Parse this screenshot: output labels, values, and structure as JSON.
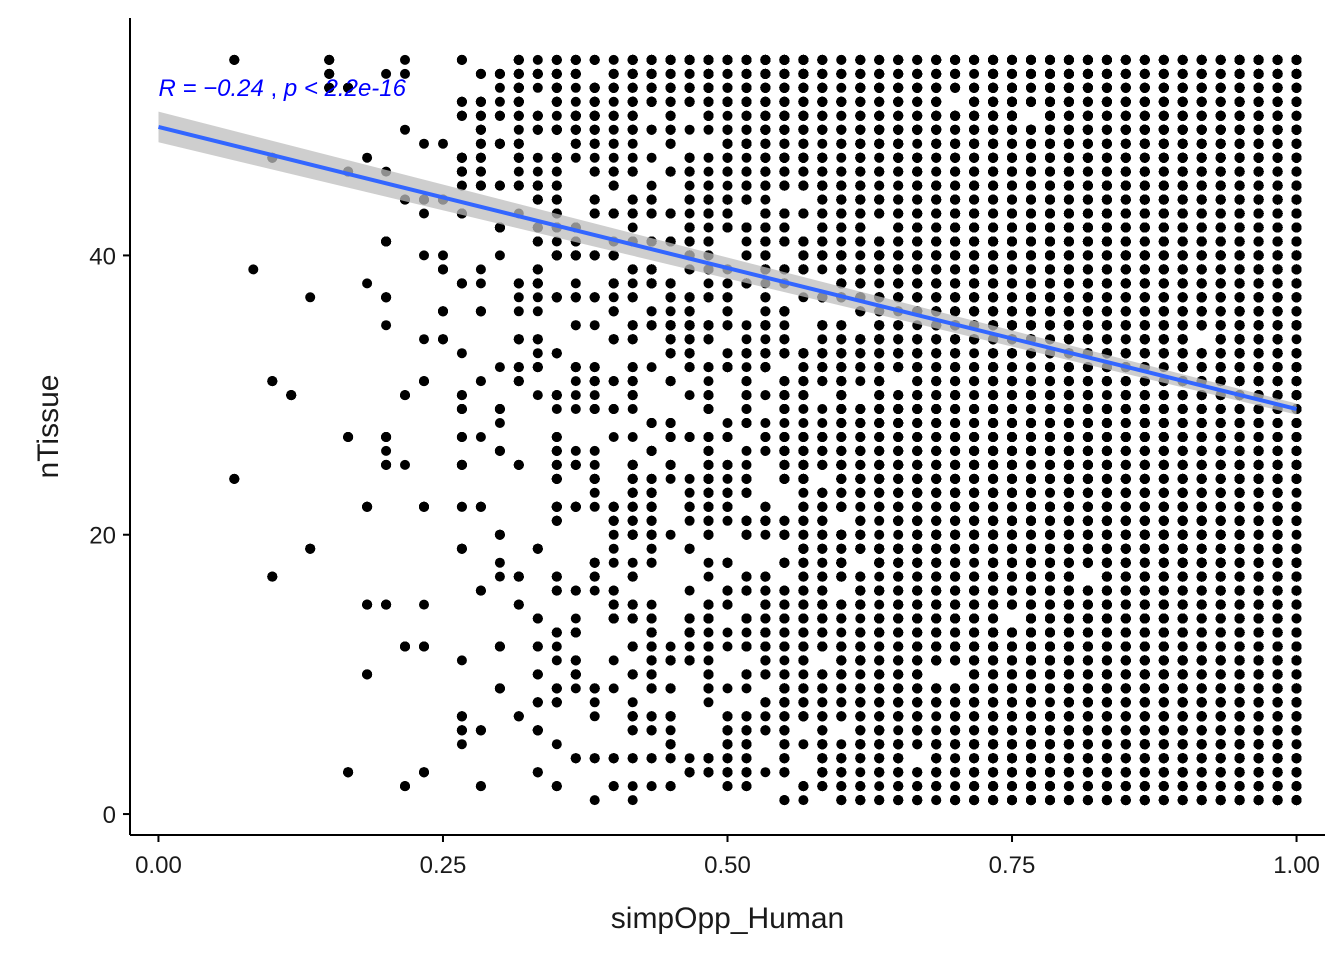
{
  "chart_data": {
    "type": "scatter",
    "xlabel": "simpOpp_Human",
    "ylabel": "nTissue",
    "xlim": [
      -0.025,
      1.025
    ],
    "ylim": [
      -1.5,
      57
    ],
    "x_ticks": [
      0.0,
      0.25,
      0.5,
      0.75,
      1.0
    ],
    "x_tick_labels": [
      "0.00",
      "0.25",
      "0.50",
      "0.75",
      "1.00"
    ],
    "y_ticks": [
      0,
      20,
      40
    ],
    "y_tick_labels": [
      "0",
      "20",
      "40"
    ],
    "grid": false,
    "legend": "none",
    "point_color": "#000000",
    "point_density_note": "dense: sparse at low x, near-saturated for x > 0.65 across y = 1..54",
    "regression": {
      "x": [
        0.0,
        1.0
      ],
      "y": [
        49.2,
        29.0
      ],
      "color": "#3366ff",
      "ci_band": {
        "lower": [
          48.1,
          28.6
        ],
        "upper": [
          50.3,
          29.4
        ],
        "color": "#bdbdbd"
      }
    },
    "annotation": {
      "text_r": "R = −0.24",
      "text_p": "p < 2.2e-16",
      "x": 0.0,
      "y": 52,
      "color": "#0000ff"
    }
  }
}
